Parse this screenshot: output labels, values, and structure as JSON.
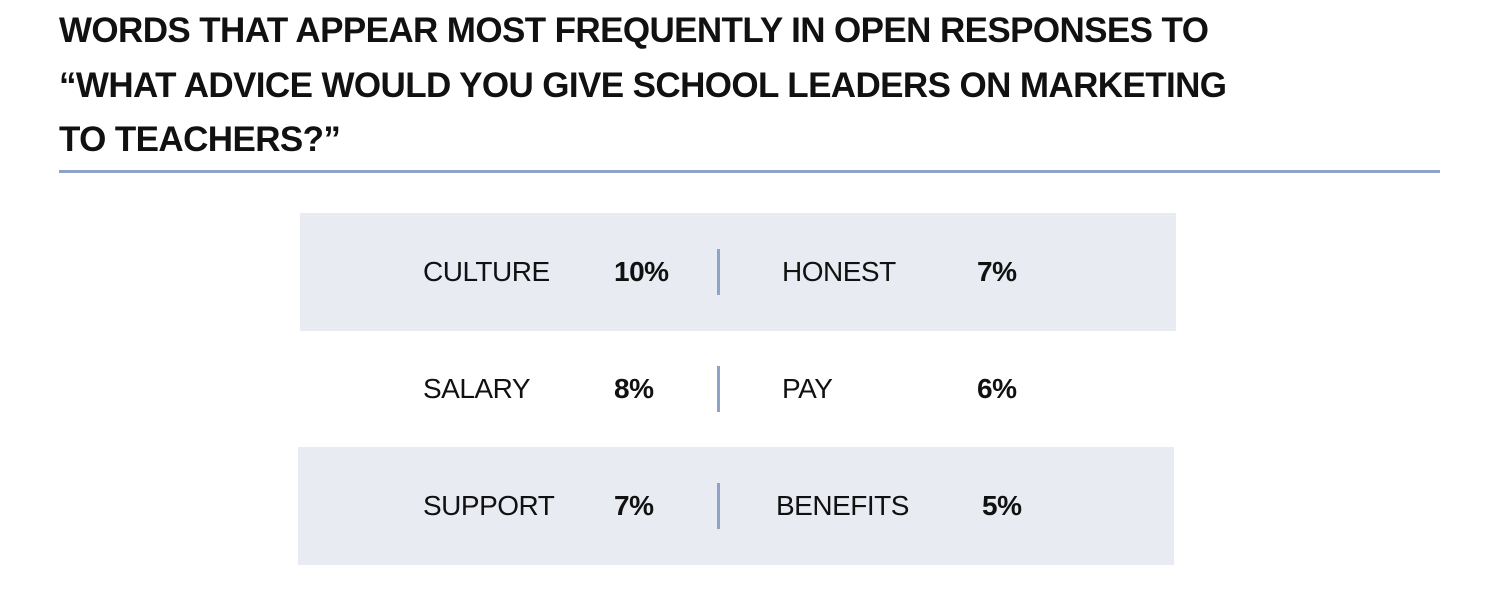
{
  "title_lines": [
    "WORDS THAT APPEAR MOST FREQUENTLY IN OPEN RESPONSES TO",
    "“WHAT ADVICE WOULD YOU GIVE SCHOOL LEADERS ON MARKETING",
    "TO TEACHERS?”"
  ],
  "colors": {
    "rule": "#8ea3c7",
    "row_shade": "#e8ecf2",
    "text": "#111111"
  },
  "chart_data": {
    "type": "table",
    "title": "WORDS THAT APPEAR MOST FREQUENTLY IN OPEN RESPONSES TO “WHAT ADVICE WOULD YOU GIVE SCHOOL LEADERS ON MARKETING TO TEACHERS?”",
    "rows": [
      {
        "shaded": true,
        "left": {
          "word": "CULTURE",
          "percent": "10%",
          "value": 10
        },
        "right": {
          "word": "HONEST",
          "percent": "7%",
          "value": 7
        }
      },
      {
        "shaded": false,
        "left": {
          "word": "SALARY",
          "percent": "8%",
          "value": 8
        },
        "right": {
          "word": "PAY",
          "percent": "6%",
          "value": 6
        }
      },
      {
        "shaded": true,
        "left": {
          "word": "SUPPORT",
          "percent": "7%",
          "value": 7
        },
        "right": {
          "word": "BENEFITS",
          "percent": "5%",
          "value": 5
        }
      }
    ]
  }
}
